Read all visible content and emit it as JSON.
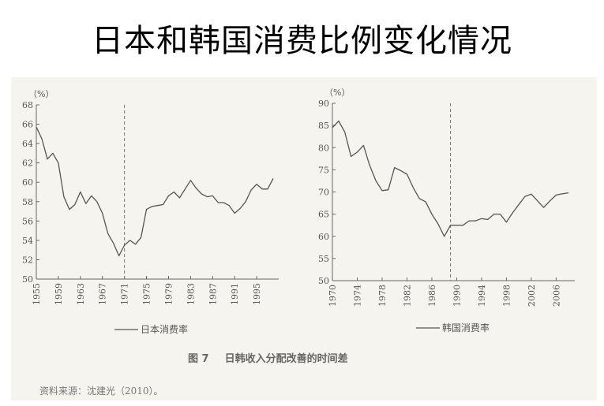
{
  "slide": {
    "title": "日本和韩国消费比例变化情况"
  },
  "figure": {
    "number": "图 7",
    "caption": "日韩收入分配改善的时间差",
    "source": "资料来源：沈建光（2010）。"
  },
  "colors": {
    "line": "#555555",
    "axis": "#666666",
    "dashed": "#777777"
  },
  "chart_data": [
    {
      "type": "line",
      "unit_label": "（%）",
      "x_ticks": [
        1955,
        1959,
        1963,
        1967,
        1971,
        1975,
        1979,
        1983,
        1987,
        1991,
        1995
      ],
      "x_range": [
        1955,
        1999
      ],
      "y_ticks": [
        50,
        52,
        54,
        56,
        58,
        60,
        62,
        64,
        66,
        68
      ],
      "ylim": [
        50,
        68
      ],
      "dashed_vline": 1971,
      "series": [
        {
          "name": "日本消费率",
          "x": [
            1955,
            1956,
            1957,
            1958,
            1959,
            1960,
            1961,
            1962,
            1963,
            1964,
            1965,
            1966,
            1967,
            1968,
            1969,
            1970,
            1971,
            1972,
            1973,
            1974,
            1975,
            1976,
            1977,
            1978,
            1979,
            1980,
            1981,
            1982,
            1983,
            1984,
            1985,
            1986,
            1987,
            1988,
            1989,
            1990,
            1991,
            1992,
            1993,
            1994,
            1995,
            1996,
            1997,
            1998
          ],
          "values": [
            65.7,
            64.5,
            62.4,
            63.0,
            62.0,
            58.5,
            57.2,
            57.7,
            59.0,
            57.8,
            58.6,
            58.0,
            56.8,
            54.7,
            53.7,
            52.4,
            53.5,
            54.0,
            53.6,
            54.3,
            57.2,
            57.5,
            57.6,
            57.7,
            58.6,
            59.0,
            58.4,
            59.3,
            60.2,
            59.4,
            58.8,
            58.5,
            58.6,
            57.9,
            57.9,
            57.6,
            56.8,
            57.3,
            58.0,
            59.2,
            59.8,
            59.3,
            59.3,
            60.4
          ]
        }
      ]
    },
    {
      "type": "line",
      "unit_label": "（%）",
      "x_ticks": [
        1970,
        1974,
        1978,
        1982,
        1986,
        1990,
        1994,
        1998,
        2002,
        2006
      ],
      "x_range": [
        1970,
        2009
      ],
      "y_ticks": [
        50,
        55,
        60,
        65,
        70,
        75,
        80,
        85,
        90
      ],
      "ylim": [
        50,
        90
      ],
      "dashed_vline": 1989,
      "series": [
        {
          "name": "韩国消费率",
          "x": [
            1970,
            1971,
            1972,
            1973,
            1974,
            1975,
            1976,
            1977,
            1978,
            1979,
            1980,
            1981,
            1982,
            1983,
            1984,
            1985,
            1986,
            1987,
            1988,
            1989,
            1990,
            1991,
            1992,
            1993,
            1994,
            1995,
            1996,
            1997,
            1998,
            1999,
            2000,
            2001,
            2002,
            2003,
            2004,
            2005,
            2006,
            2007,
            2008
          ],
          "values": [
            84.5,
            86.0,
            83.5,
            78.0,
            79.0,
            80.5,
            76.0,
            72.5,
            70.3,
            70.5,
            75.5,
            74.8,
            74.0,
            71.0,
            68.5,
            67.8,
            65.0,
            62.8,
            60.0,
            62.5,
            62.5,
            62.5,
            63.5,
            63.5,
            64.0,
            63.8,
            65.0,
            65.0,
            63.2,
            65.3,
            67.2,
            69.0,
            69.5,
            68.0,
            66.5,
            68.0,
            69.3,
            69.6,
            69.8
          ]
        }
      ]
    }
  ]
}
